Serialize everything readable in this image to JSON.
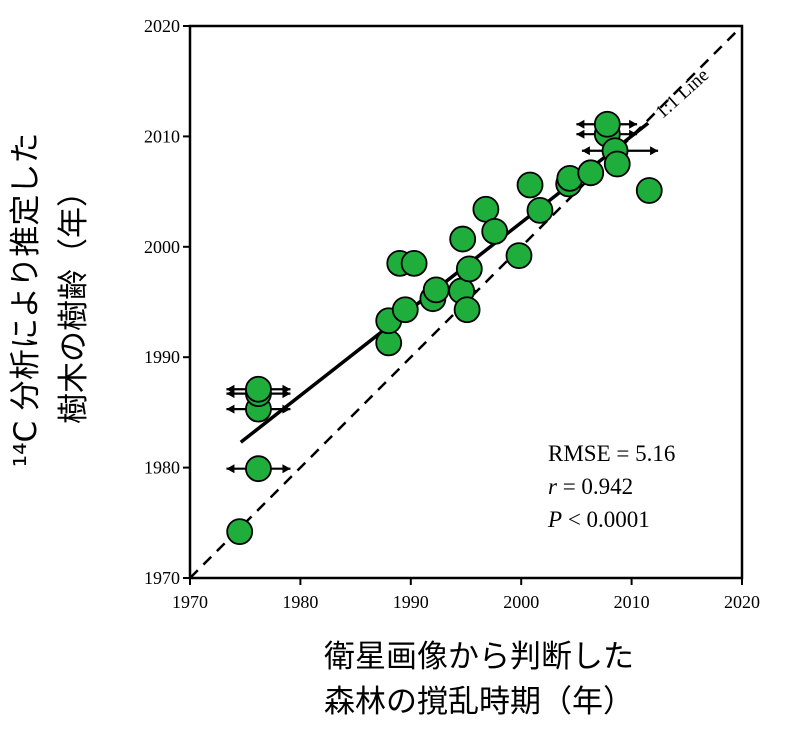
{
  "chart_data": {
    "type": "scatter",
    "xlabel": [
      "衛星画像から判断した",
      "森林の撹乱時期（年）"
    ],
    "ylabel": [
      "¹⁴C 分析により推定した",
      "樹木の樹齢（年）"
    ],
    "xlim": [
      1970,
      2020
    ],
    "ylim": [
      1970,
      2020
    ],
    "xticks": [
      "1970",
      "1980",
      "1990",
      "2000",
      "2010",
      "2020"
    ],
    "yticks": [
      "1970",
      "1980",
      "1990",
      "2000",
      "2010",
      "2020"
    ],
    "grid": false,
    "legend": "none",
    "identity_line_label": "1:1 Line",
    "regression_line": {
      "x": [
        1974.6,
        2011.5
      ],
      "y": [
        1982.3,
        2011.2
      ]
    },
    "stats": {
      "rmse_label": "RMSE = 5.16",
      "r_symbol": "r",
      "r_text": " = 0.942",
      "p_symbol": "P",
      "p_text": " < 0.0001"
    },
    "marker_color": "#1fae3c",
    "points": [
      {
        "x": 1974.5,
        "y": 1974.2
      },
      {
        "x": 1976.2,
        "y": 1979.9,
        "xerr": [
          1973.3,
          1979.1
        ]
      },
      {
        "x": 1976.2,
        "y": 1985.3,
        "xerr": [
          1973.3,
          1979.1
        ]
      },
      {
        "x": 1976.2,
        "y": 1986.7,
        "xerr": [
          1973.3,
          1979.1
        ]
      },
      {
        "x": 1976.2,
        "y": 1987.1,
        "xerr": [
          1973.3,
          1979.1
        ]
      },
      {
        "x": 1988.0,
        "y": 1991.3
      },
      {
        "x": 1988.0,
        "y": 1993.3
      },
      {
        "x": 1989.5,
        "y": 1994.3
      },
      {
        "x": 1989.0,
        "y": 1998.5
      },
      {
        "x": 1990.3,
        "y": 1998.5
      },
      {
        "x": 1992.0,
        "y": 1995.3
      },
      {
        "x": 1992.3,
        "y": 1996.1
      },
      {
        "x": 1994.6,
        "y": 1996.0,
        "xerr": [
          1993.4,
          1996.0
        ]
      },
      {
        "x": 1995.1,
        "y": 1994.3
      },
      {
        "x": 1995.3,
        "y": 1998.0
      },
      {
        "x": 1994.7,
        "y": 2000.7
      },
      {
        "x": 1996.8,
        "y": 2003.4
      },
      {
        "x": 1997.6,
        "y": 2001.4
      },
      {
        "x": 1999.8,
        "y": 1999.2
      },
      {
        "x": 2000.8,
        "y": 2005.6
      },
      {
        "x": 2001.7,
        "y": 2003.3
      },
      {
        "x": 2004.3,
        "y": 2005.7
      },
      {
        "x": 2004.4,
        "y": 2006.2
      },
      {
        "x": 2006.3,
        "y": 2006.7
      },
      {
        "x": 2007.8,
        "y": 2010.2,
        "xerr": [
          2005.0,
          2010.5
        ]
      },
      {
        "x": 2007.8,
        "y": 2011.1,
        "xerr": [
          2005.0,
          2010.5
        ]
      },
      {
        "x": 2008.5,
        "y": 2008.7,
        "xerr": [
          2005.5,
          2012.4
        ]
      },
      {
        "x": 2008.7,
        "y": 2007.5
      },
      {
        "x": 2011.6,
        "y": 2005.1
      }
    ]
  }
}
